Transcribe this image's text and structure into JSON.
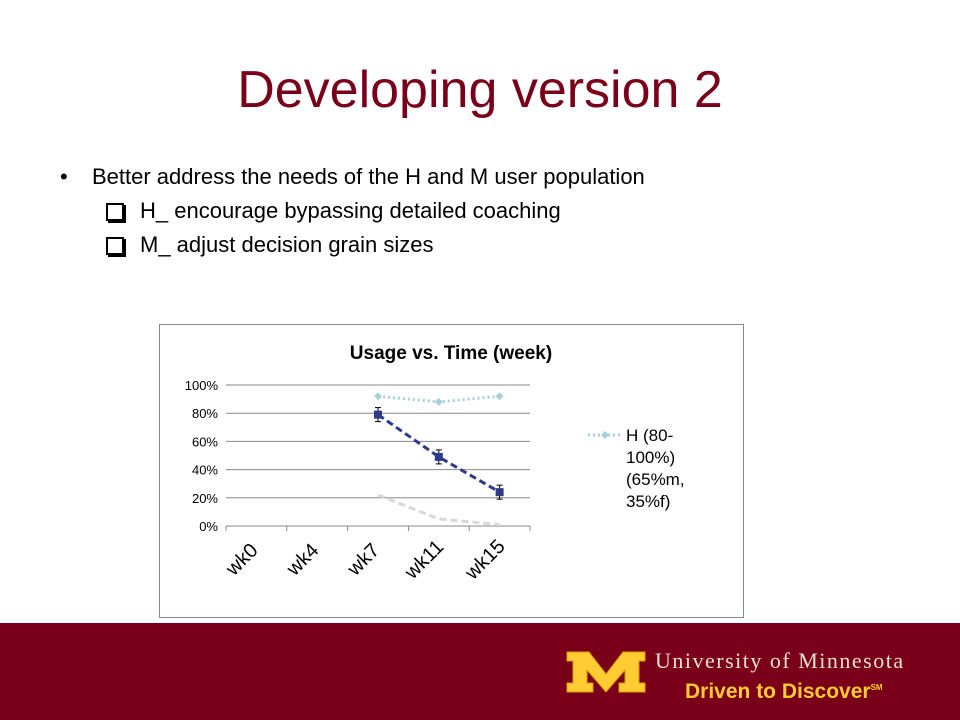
{
  "slide": {
    "title": "Developing version 2",
    "bullet": "Better address the needs of the H and M user population",
    "subbullets": [
      "H_ encourage bypassing detailed coaching",
      "M_ adjust decision grain sizes"
    ]
  },
  "footer": {
    "university": "University of Minnesota",
    "tagline": "Driven to Discover",
    "mark": "SM",
    "colors": {
      "maroon": "#7a0019",
      "gold": "#ffcc33"
    }
  },
  "chart_data": {
    "type": "line",
    "title": "Usage vs. Time (week)",
    "categories": [
      "wk0",
      "wk4",
      "wk7",
      "wk11",
      "wk15"
    ],
    "yticks": [
      "0%",
      "20%",
      "40%",
      "60%",
      "80%",
      "100%"
    ],
    "ylim": [
      0,
      100
    ],
    "grid": true,
    "legend_position": "right",
    "legend_label": "H (80-100%) (65%m, 35%f)",
    "series": [
      {
        "name": "H (80-100%) (65%m, 35%f)",
        "values": [
          null,
          null,
          92,
          88,
          92
        ],
        "color": "#a8d0dc",
        "style": "dotted",
        "marker": "diamond"
      },
      {
        "values": [
          null,
          null,
          79,
          49,
          24
        ],
        "color": "#2e3a8c",
        "style": "dashed",
        "marker": "square",
        "errorbars": true
      },
      {
        "values": [
          null,
          null,
          22,
          5,
          1
        ],
        "color": "#d8d8d8",
        "style": "dashed",
        "marker": "none"
      }
    ]
  }
}
